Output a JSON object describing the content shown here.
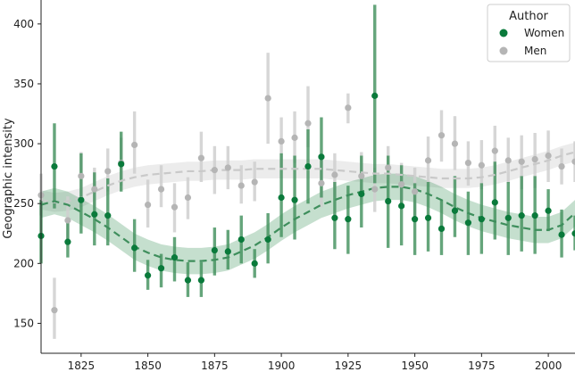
{
  "chart_data": {
    "type": "scatter",
    "ylabel": "Geographic intensity",
    "xlim": [
      1810,
      2010
    ],
    "ylim": [
      125,
      420
    ],
    "xticks": [
      1825,
      1850,
      1875,
      1900,
      1925,
      1950,
      1975,
      2000
    ],
    "yticks": [
      150,
      200,
      250,
      300,
      350,
      400
    ],
    "grid": false,
    "legend": {
      "title": "Author",
      "placement": "top-right"
    },
    "colors": {
      "Women": "#0a7a3b",
      "Men": "#b5b5b5"
    },
    "series": [
      {
        "name": "Women",
        "x": [
          1810,
          1815,
          1820,
          1825,
          1830,
          1835,
          1840,
          1845,
          1850,
          1855,
          1860,
          1865,
          1870,
          1875,
          1880,
          1885,
          1890,
          1895,
          1900,
          1905,
          1910,
          1915,
          1920,
          1925,
          1930,
          1935,
          1940,
          1945,
          1950,
          1955,
          1960,
          1965,
          1970,
          1975,
          1980,
          1985,
          1990,
          1995,
          2000,
          2005,
          2010
        ],
        "y": [
          223,
          281,
          218,
          253,
          241,
          240,
          283,
          213,
          190,
          196,
          205,
          186,
          186,
          211,
          210,
          220,
          200,
          220,
          255,
          253,
          281,
          289,
          238,
          237,
          258,
          340,
          252,
          248,
          237,
          238,
          229,
          244,
          234,
          237,
          251,
          238,
          240,
          240,
          244,
          224,
          225
        ],
        "err_low": [
          200,
          246,
          205,
          225,
          215,
          215,
          260,
          193,
          178,
          180,
          185,
          172,
          172,
          190,
          195,
          200,
          188,
          200,
          222,
          220,
          250,
          255,
          212,
          208,
          230,
          267,
          213,
          215,
          207,
          210,
          207,
          222,
          207,
          208,
          220,
          207,
          210,
          208,
          227,
          205,
          211
        ],
        "err_high": [
          253,
          317,
          234,
          292,
          276,
          271,
          310,
          237,
          203,
          208,
          222,
          201,
          201,
          230,
          228,
          240,
          212,
          242,
          292,
          290,
          312,
          322,
          268,
          265,
          290,
          416,
          290,
          282,
          267,
          268,
          253,
          273,
          260,
          267,
          285,
          268,
          273,
          273,
          262,
          245,
          240
        ],
        "trend": [
          [
            1810,
            249
          ],
          [
            1815,
            252
          ],
          [
            1820,
            249
          ],
          [
            1825,
            243
          ],
          [
            1830,
            237
          ],
          [
            1835,
            230
          ],
          [
            1840,
            222
          ],
          [
            1845,
            214
          ],
          [
            1850,
            209
          ],
          [
            1855,
            205
          ],
          [
            1860,
            203
          ],
          [
            1865,
            202
          ],
          [
            1870,
            202
          ],
          [
            1875,
            203
          ],
          [
            1880,
            205
          ],
          [
            1885,
            210
          ],
          [
            1890,
            215
          ],
          [
            1895,
            222
          ],
          [
            1900,
            230
          ],
          [
            1905,
            237
          ],
          [
            1910,
            243
          ],
          [
            1915,
            249
          ],
          [
            1920,
            253
          ],
          [
            1925,
            257
          ],
          [
            1930,
            260
          ],
          [
            1935,
            263
          ],
          [
            1940,
            264
          ],
          [
            1945,
            264
          ],
          [
            1950,
            262
          ],
          [
            1955,
            258
          ],
          [
            1960,
            253
          ],
          [
            1965,
            247
          ],
          [
            1970,
            242
          ],
          [
            1975,
            238
          ],
          [
            1980,
            235
          ],
          [
            1985,
            232
          ],
          [
            1990,
            230
          ],
          [
            1995,
            228
          ],
          [
            2000,
            228
          ],
          [
            2005,
            232
          ],
          [
            2010,
            242
          ]
        ],
        "band_halfwidth": 11
      },
      {
        "name": "Men",
        "x": [
          1810,
          1815,
          1820,
          1825,
          1830,
          1835,
          1840,
          1845,
          1850,
          1855,
          1860,
          1865,
          1870,
          1875,
          1880,
          1885,
          1890,
          1895,
          1900,
          1905,
          1910,
          1915,
          1920,
          1925,
          1930,
          1935,
          1940,
          1945,
          1950,
          1955,
          1960,
          1965,
          1970,
          1975,
          1980,
          1985,
          1990,
          1995,
          2000,
          2005,
          2010
        ],
        "y": [
          257,
          161,
          236,
          273,
          262,
          277,
          284,
          299,
          249,
          262,
          247,
          255,
          288,
          278,
          280,
          265,
          268,
          338,
          302,
          305,
          317,
          267,
          274,
          330,
          273,
          262,
          280,
          266,
          260,
          286,
          307,
          300,
          284,
          282,
          294,
          286,
          285,
          287,
          290,
          281,
          285
        ],
        "err_low": [
          240,
          137,
          216,
          255,
          245,
          260,
          265,
          275,
          230,
          247,
          226,
          237,
          268,
          258,
          262,
          250,
          252,
          300,
          280,
          284,
          297,
          247,
          256,
          317,
          253,
          243,
          262,
          248,
          240,
          266,
          285,
          278,
          265,
          262,
          275,
          267,
          262,
          263,
          268,
          266,
          268
        ],
        "err_high": [
          275,
          188,
          256,
          293,
          280,
          296,
          305,
          327,
          270,
          282,
          267,
          272,
          310,
          298,
          298,
          282,
          285,
          376,
          322,
          327,
          348,
          287,
          292,
          342,
          293,
          280,
          298,
          284,
          280,
          306,
          328,
          323,
          302,
          303,
          315,
          305,
          307,
          309,
          311,
          296,
          302
        ],
        "trend": [
          [
            1810,
            253
          ],
          [
            1815,
            251
          ],
          [
            1820,
            252
          ],
          [
            1825,
            255
          ],
          [
            1830,
            260
          ],
          [
            1835,
            265
          ],
          [
            1840,
            269
          ],
          [
            1845,
            272
          ],
          [
            1850,
            274
          ],
          [
            1855,
            275
          ],
          [
            1860,
            276
          ],
          [
            1865,
            277
          ],
          [
            1870,
            277
          ],
          [
            1875,
            278
          ],
          [
            1880,
            278
          ],
          [
            1885,
            278
          ],
          [
            1890,
            279
          ],
          [
            1895,
            279
          ],
          [
            1900,
            279
          ],
          [
            1905,
            279
          ],
          [
            1910,
            279
          ],
          [
            1915,
            279
          ],
          [
            1920,
            278
          ],
          [
            1925,
            277
          ],
          [
            1930,
            276
          ],
          [
            1935,
            275
          ],
          [
            1940,
            275
          ],
          [
            1945,
            274
          ],
          [
            1950,
            273
          ],
          [
            1955,
            272
          ],
          [
            1960,
            271
          ],
          [
            1965,
            271
          ],
          [
            1970,
            271
          ],
          [
            1975,
            272
          ],
          [
            1980,
            274
          ],
          [
            1985,
            277
          ],
          [
            1990,
            280
          ],
          [
            1995,
            283
          ],
          [
            2000,
            286
          ],
          [
            2005,
            290
          ],
          [
            2010,
            293
          ]
        ],
        "band_halfwidth": 8
      }
    ]
  }
}
